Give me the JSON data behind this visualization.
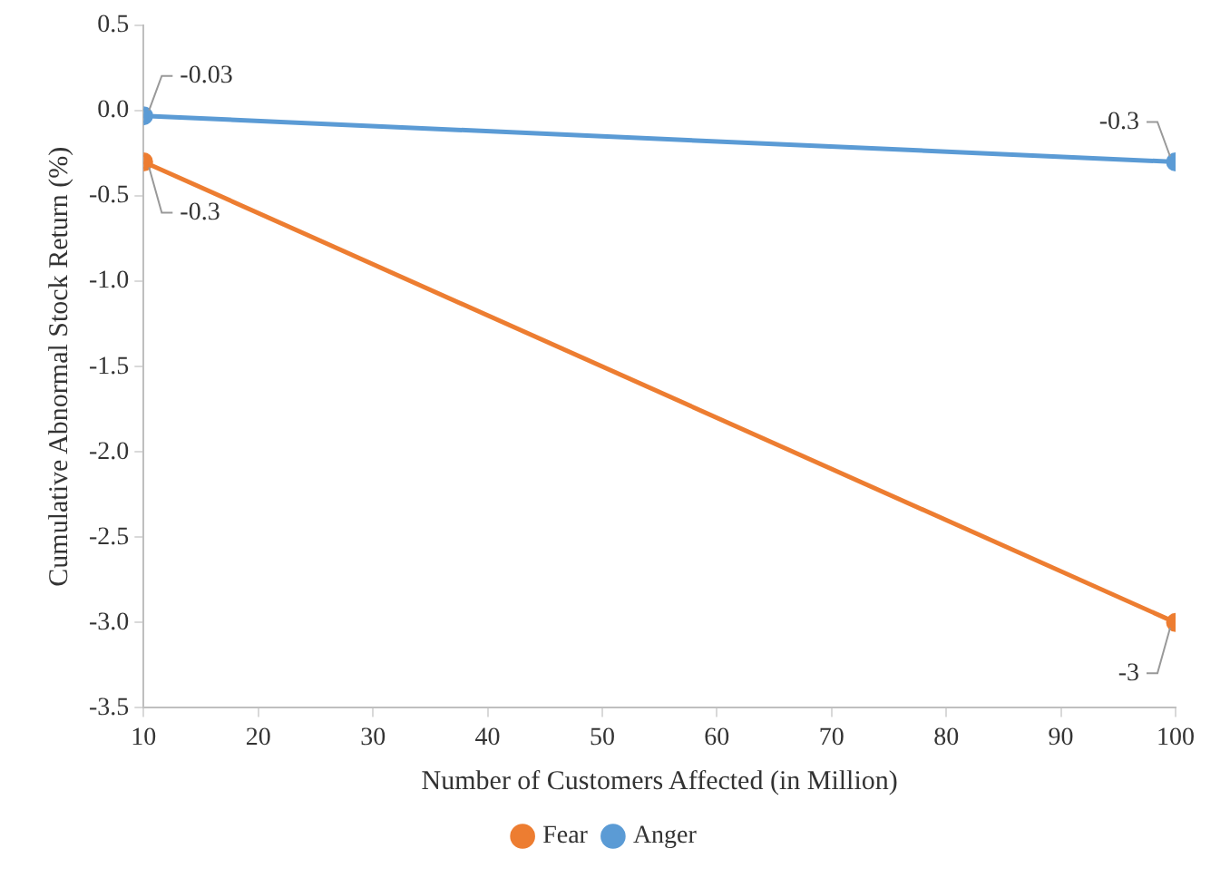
{
  "chart_data": {
    "type": "line",
    "xlabel": "Number of Customers Affected (in Million)",
    "ylabel": "Cumulative Abnormal Stock Return (%)",
    "x": [
      10,
      100
    ],
    "series": [
      {
        "name": "Fear",
        "color": "#ed7d31",
        "values": [
          -0.3,
          -3
        ]
      },
      {
        "name": "Anger",
        "color": "#5b9bd5",
        "values": [
          -0.03,
          -0.3
        ]
      }
    ],
    "xlim": [
      10,
      100
    ],
    "xticks": [
      10,
      20,
      30,
      40,
      50,
      60,
      70,
      80,
      90,
      100
    ],
    "ylim": [
      -3.5,
      0.5
    ],
    "yticks": [
      {
        "value": -3.5,
        "label": "-3.5"
      },
      {
        "value": -3,
        "label": "-3.0"
      },
      {
        "value": -2.5,
        "label": "-2.5"
      },
      {
        "value": -2,
        "label": "-2.0"
      },
      {
        "value": -1.5,
        "label": "-1.5"
      },
      {
        "value": -1,
        "label": "-1.0"
      },
      {
        "value": -0.5,
        "label": "-0.5"
      },
      {
        "value": 0,
        "label": "0.0"
      },
      {
        "value": 0.5,
        "label": "0.5"
      }
    ],
    "grid": false,
    "legend": "bottom",
    "marker": "circle",
    "line_style": "solid",
    "data_labels": true
  }
}
